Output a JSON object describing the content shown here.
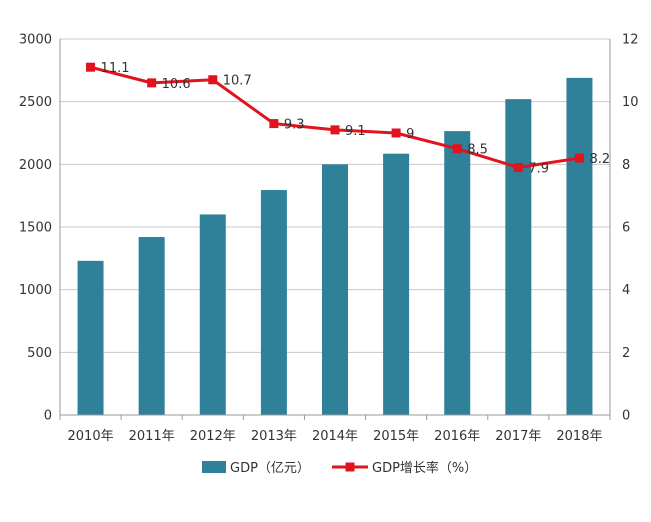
{
  "chart_data": {
    "type": "bar",
    "categories": [
      "2010年",
      "2011年",
      "2012年",
      "2013年",
      "2014年",
      "2015年",
      "2016年",
      "2017年",
      "2018年"
    ],
    "series": [
      {
        "name": "GDP（亿元）",
        "type": "bar",
        "axis": "left",
        "color": "#2e8199",
        "values": [
          1230,
          1420,
          1600,
          1795,
          2000,
          2085,
          2265,
          2520,
          2690
        ]
      },
      {
        "name": "GDP增长率（%）",
        "type": "line",
        "axis": "right",
        "color": "#e0141e",
        "values": [
          11.1,
          10.6,
          10.7,
          9.3,
          9.1,
          9,
          8.5,
          7.9,
          8.2
        ],
        "labels": [
          "11.1",
          "10.6",
          "10.7",
          "9.3",
          "9.1",
          "9",
          "8.5",
          "7.9",
          "8.2"
        ]
      }
    ],
    "y_left": {
      "range": [
        0,
        3000
      ],
      "ticks": [
        "0",
        "500",
        "1000",
        "1500",
        "2000",
        "2500",
        "3000"
      ]
    },
    "y_right": {
      "range": [
        0,
        12
      ],
      "ticks": [
        "0",
        "2",
        "4",
        "6",
        "8",
        "10",
        "12"
      ]
    },
    "title": "",
    "xlabel": "",
    "ylabel": "",
    "grid": true,
    "legend_position": "bottom"
  }
}
